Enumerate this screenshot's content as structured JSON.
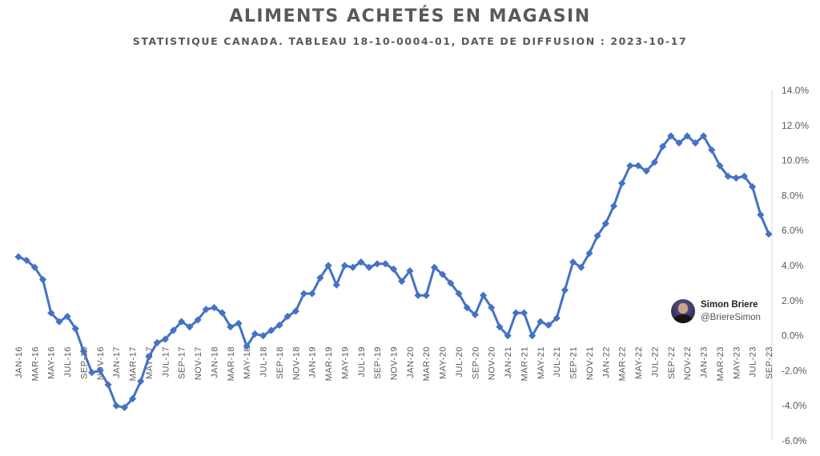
{
  "chart_data": {
    "type": "line",
    "title": "ALIMENTS  ACHETÉS  EN MAGASIN",
    "subtitle": "STATISTIQUE CANADA.  TABLEAU 18-10-0004-01, DATE DE DIFFUSION : 2023-10-17",
    "xlabel": "",
    "ylabel": "",
    "ylim": [
      -6,
      14
    ],
    "ytick_step": 2,
    "ytick_labels": [
      "14.0%",
      "12.0%",
      "10.0%",
      "8.0%",
      "6.0%",
      "4.0%",
      "2.0%",
      "0.0%",
      "-2.0%",
      "-4.0%",
      "-6.0%"
    ],
    "y_axis_side": "right",
    "grid": false,
    "legend": "none",
    "series_color": "#4472C4",
    "x_tick_every": 2,
    "categories": [
      "JAN-16",
      "FEB-16",
      "MAR-16",
      "APR-16",
      "MAY-16",
      "JUN-16",
      "JUL-16",
      "AUG-16",
      "SEP-16",
      "OCT-16",
      "NOV-16",
      "DEC-16",
      "JAN-17",
      "FEB-17",
      "MAR-17",
      "APR-17",
      "MAY-17",
      "JUN-17",
      "JUL-17",
      "AUG-17",
      "SEP-17",
      "OCT-17",
      "NOV-17",
      "DEC-17",
      "JAN-18",
      "FEB-18",
      "MAR-18",
      "APR-18",
      "MAY-18",
      "JUN-18",
      "JUL-18",
      "AUG-18",
      "SEP-18",
      "OCT-18",
      "NOV-18",
      "DEC-18",
      "JAN-19",
      "FEB-19",
      "MAR-19",
      "APR-19",
      "MAY-19",
      "JUN-19",
      "JUL-19",
      "AUG-19",
      "SEP-19",
      "OCT-19",
      "NOV-19",
      "DEC-19",
      "JAN-20",
      "FEB-20",
      "MAR-20",
      "APR-20",
      "MAY-20",
      "JUN-20",
      "JUL-20",
      "AUG-20",
      "SEP-20",
      "OCT-20",
      "NOV-20",
      "DEC-20",
      "JAN-21",
      "FEB-21",
      "MAR-21",
      "APR-21",
      "MAY-21",
      "JUN-21",
      "JUL-21",
      "AUG-21",
      "SEP-21",
      "OCT-21",
      "NOV-21",
      "DEC-21",
      "JAN-22",
      "FEB-22",
      "MAR-22",
      "APR-22",
      "MAY-22",
      "JUN-22",
      "JUL-22",
      "AUG-22",
      "SEP-22",
      "OCT-22",
      "NOV-22",
      "DEC-22",
      "JAN-23",
      "FEB-23",
      "MAR-23",
      "APR-23",
      "MAY-23",
      "JUN-23",
      "JUL-23",
      "AUG-23",
      "SEP-23"
    ],
    "values": [
      4.5,
      4.3,
      3.9,
      3.2,
      1.3,
      0.8,
      1.1,
      0.4,
      -0.9,
      -2.1,
      -2.0,
      -2.8,
      -4.0,
      -4.1,
      -3.6,
      -2.6,
      -1.2,
      -0.4,
      -0.2,
      0.3,
      0.8,
      0.5,
      0.9,
      1.5,
      1.6,
      1.3,
      0.5,
      0.7,
      -0.6,
      0.1,
      0.0,
      0.3,
      0.6,
      1.1,
      1.4,
      2.4,
      2.4,
      3.3,
      4.0,
      2.9,
      4.0,
      3.9,
      4.2,
      3.9,
      4.1,
      4.1,
      3.8,
      3.1,
      3.7,
      2.3,
      2.3,
      3.9,
      3.5,
      3.0,
      2.4,
      1.6,
      1.2,
      2.3,
      1.6,
      0.5,
      0.0,
      1.3,
      1.3,
      0.0,
      0.8,
      0.6,
      1.0,
      2.6,
      4.2,
      3.9,
      4.7,
      5.7,
      6.4,
      7.4,
      8.7,
      9.7,
      9.7,
      9.4,
      9.9,
      10.8,
      11.4,
      11.0,
      11.4,
      11.0,
      11.4,
      10.6,
      9.7,
      9.1,
      9.0,
      9.1,
      8.5,
      6.9,
      5.8
    ]
  },
  "author": {
    "name": "Simon Briere",
    "handle": "@BriereSimon"
  }
}
